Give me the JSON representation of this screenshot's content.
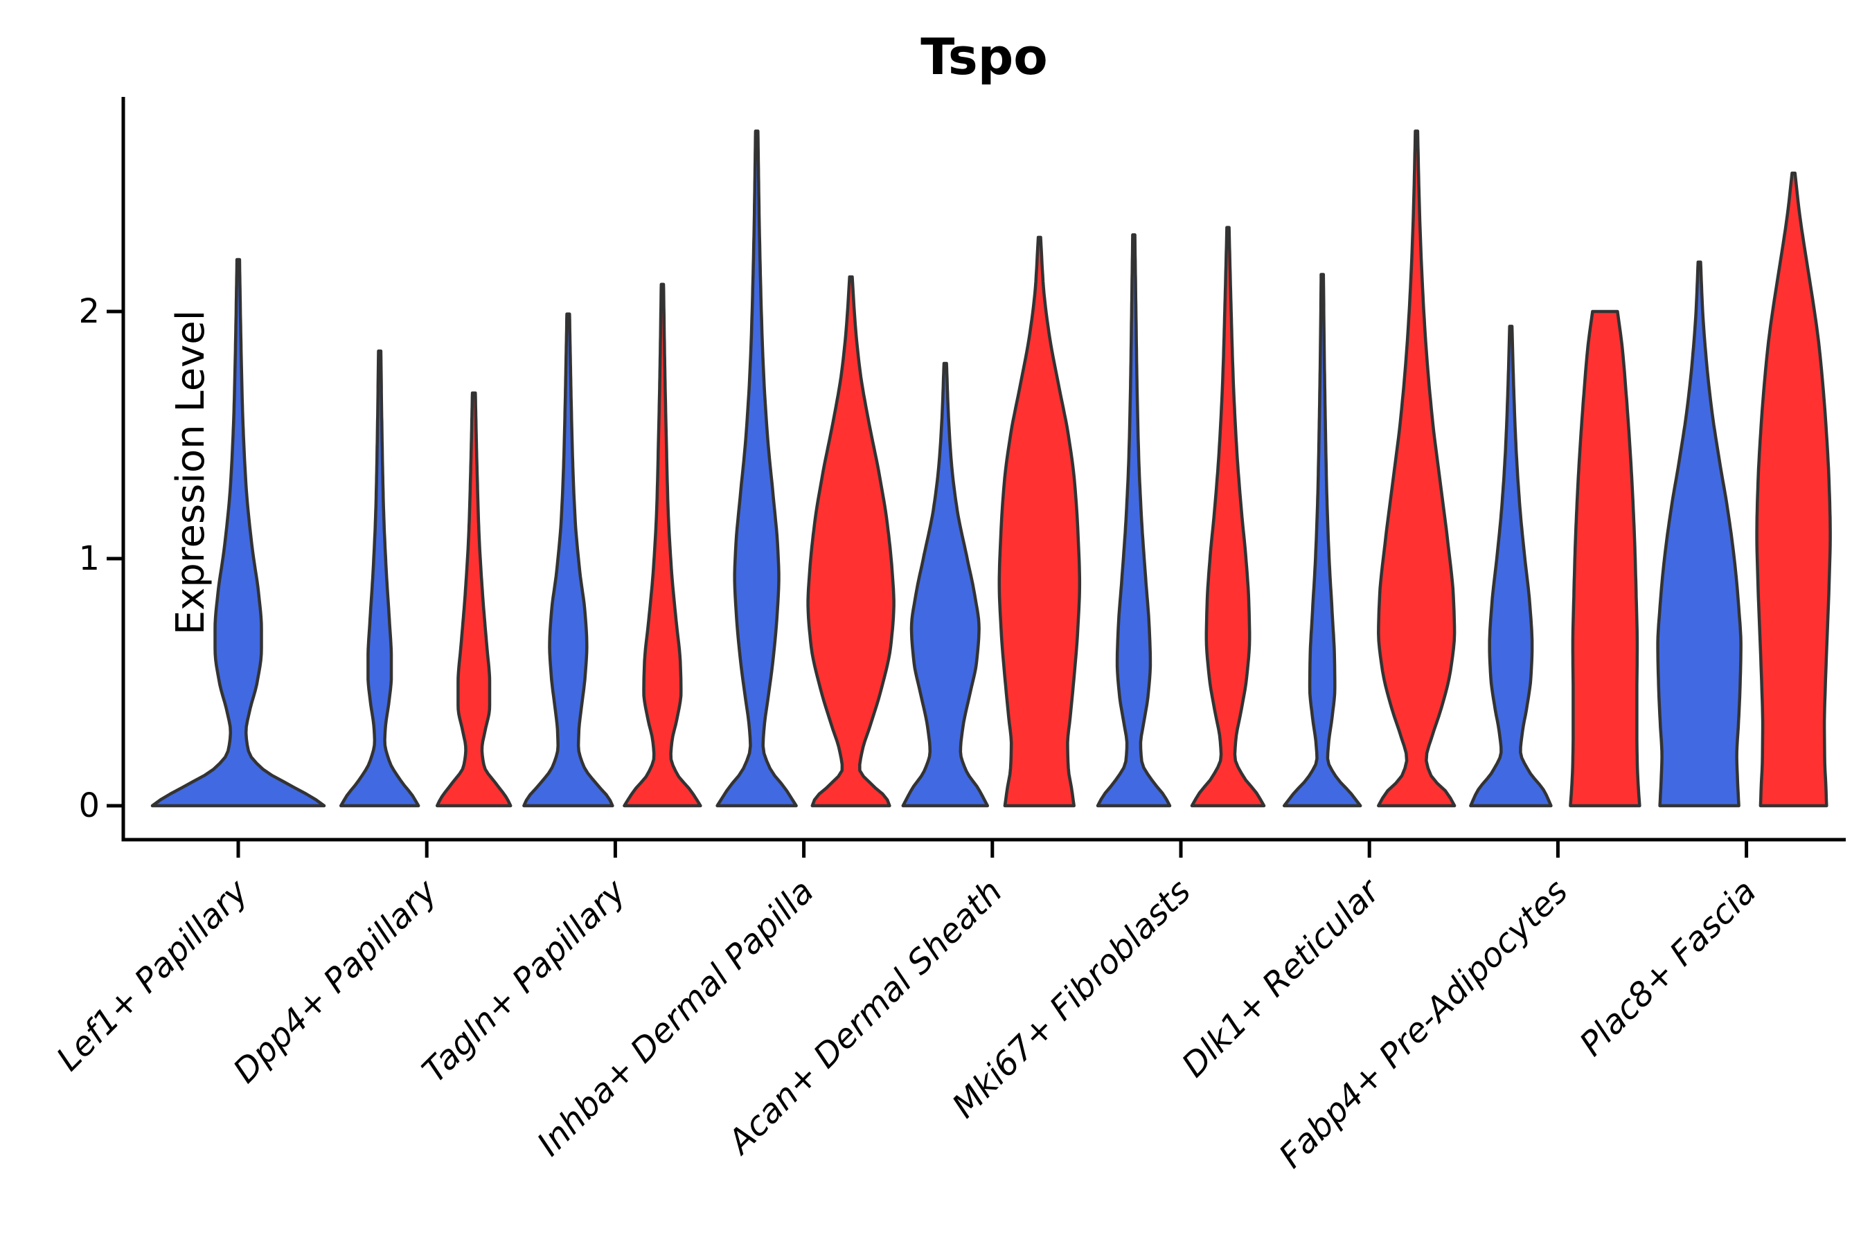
{
  "chart_data": {
    "type": "violin",
    "title": "Tspo",
    "ylabel": "Expression Level",
    "xlabel": "",
    "ytick_labels": [
      "0",
      "1",
      "2"
    ],
    "yticks": [
      0,
      1,
      2
    ],
    "ylim": [
      -0.13,
      2.87
    ],
    "grid": false,
    "legend": "none",
    "split_violins": true,
    "categories": [
      "Lef1+ Papillary",
      "Dpp4+ Papillary",
      "Tagln+ Papillary",
      "Inhba+ Dermal Papilla",
      "Acan+ Dermal Sheath",
      "Mki67+ Fibroblasts",
      "Dlk1+ Reticular",
      "Fabp4+ Pre-Adipocytes",
      "Plac8+ Fascia"
    ],
    "colors": {
      "blue": "#4169E1",
      "red": "#FF3131",
      "outline": "#333333",
      "axis": "#000000"
    },
    "violins": [
      {
        "category_index": 0,
        "group": "blue",
        "side": "single",
        "max": 2.21,
        "half_width": 124,
        "profile": [
          [
            0,
            1.0
          ],
          [
            0.03,
            0.88
          ],
          [
            0.08,
            0.62
          ],
          [
            0.15,
            0.28
          ],
          [
            0.22,
            0.12
          ],
          [
            0.3,
            0.09
          ],
          [
            0.38,
            0.13
          ],
          [
            0.5,
            0.22
          ],
          [
            0.63,
            0.27
          ],
          [
            0.72,
            0.27
          ],
          [
            0.85,
            0.24
          ],
          [
            1.05,
            0.16
          ],
          [
            1.3,
            0.09
          ],
          [
            1.6,
            0.05
          ],
          [
            1.9,
            0.03
          ],
          [
            2.21,
            0.015
          ]
        ]
      },
      {
        "category_index": 1,
        "group": "blue",
        "side": "left",
        "max": 1.84,
        "half_width": 56,
        "profile": [
          [
            0,
            1.0
          ],
          [
            0.04,
            0.85
          ],
          [
            0.1,
            0.55
          ],
          [
            0.18,
            0.25
          ],
          [
            0.26,
            0.13
          ],
          [
            0.32,
            0.15
          ],
          [
            0.42,
            0.24
          ],
          [
            0.52,
            0.3
          ],
          [
            0.6,
            0.3
          ],
          [
            0.75,
            0.25
          ],
          [
            0.95,
            0.17
          ],
          [
            1.2,
            0.1
          ],
          [
            1.5,
            0.06
          ],
          [
            1.84,
            0.03
          ]
        ]
      },
      {
        "category_index": 1,
        "group": "red",
        "side": "right",
        "max": 1.67,
        "half_width": 53,
        "profile": [
          [
            0,
            1.0
          ],
          [
            0.03,
            0.9
          ],
          [
            0.09,
            0.6
          ],
          [
            0.16,
            0.28
          ],
          [
            0.23,
            0.22
          ],
          [
            0.3,
            0.3
          ],
          [
            0.4,
            0.43
          ],
          [
            0.5,
            0.43
          ],
          [
            0.65,
            0.35
          ],
          [
            0.85,
            0.24
          ],
          [
            1.1,
            0.14
          ],
          [
            1.4,
            0.08
          ],
          [
            1.67,
            0.04
          ]
        ]
      },
      {
        "category_index": 2,
        "group": "blue",
        "side": "left",
        "max": 1.99,
        "half_width": 64,
        "profile": [
          [
            0,
            1.0
          ],
          [
            0.03,
            0.92
          ],
          [
            0.08,
            0.68
          ],
          [
            0.16,
            0.35
          ],
          [
            0.24,
            0.23
          ],
          [
            0.3,
            0.24
          ],
          [
            0.4,
            0.3
          ],
          [
            0.52,
            0.38
          ],
          [
            0.65,
            0.42
          ],
          [
            0.78,
            0.38
          ],
          [
            0.95,
            0.26
          ],
          [
            1.15,
            0.16
          ],
          [
            1.4,
            0.1
          ],
          [
            1.7,
            0.06
          ],
          [
            1.99,
            0.03
          ]
        ]
      },
      {
        "category_index": 2,
        "group": "red",
        "side": "right",
        "max": 2.11,
        "half_width": 55,
        "profile": [
          [
            0,
            1.0
          ],
          [
            0.06,
            0.75
          ],
          [
            0.13,
            0.38
          ],
          [
            0.2,
            0.22
          ],
          [
            0.26,
            0.25
          ],
          [
            0.35,
            0.38
          ],
          [
            0.46,
            0.49
          ],
          [
            0.58,
            0.47
          ],
          [
            0.75,
            0.36
          ],
          [
            0.95,
            0.24
          ],
          [
            1.2,
            0.15
          ],
          [
            1.5,
            0.1
          ],
          [
            1.8,
            0.06
          ],
          [
            2.11,
            0.03
          ]
        ]
      },
      {
        "category_index": 3,
        "group": "blue",
        "side": "left",
        "max": 2.73,
        "half_width": 57,
        "profile": [
          [
            0,
            1.0
          ],
          [
            0.07,
            0.72
          ],
          [
            0.15,
            0.34
          ],
          [
            0.24,
            0.16
          ],
          [
            0.32,
            0.19
          ],
          [
            0.45,
            0.3
          ],
          [
            0.6,
            0.42
          ],
          [
            0.78,
            0.52
          ],
          [
            0.92,
            0.56
          ],
          [
            1.05,
            0.53
          ],
          [
            1.25,
            0.42
          ],
          [
            1.5,
            0.27
          ],
          [
            1.8,
            0.16
          ],
          [
            2.1,
            0.1
          ],
          [
            2.4,
            0.06
          ],
          [
            2.73,
            0.03
          ]
        ]
      },
      {
        "category_index": 3,
        "group": "red",
        "side": "right",
        "max": 2.14,
        "half_width": 62,
        "profile": [
          [
            0,
            0.9
          ],
          [
            0.03,
            0.83
          ],
          [
            0.08,
            0.52
          ],
          [
            0.15,
            0.2
          ],
          [
            0.22,
            0.26
          ],
          [
            0.33,
            0.46
          ],
          [
            0.48,
            0.72
          ],
          [
            0.65,
            0.93
          ],
          [
            0.82,
            1.0
          ],
          [
            0.95,
            0.96
          ],
          [
            1.15,
            0.84
          ],
          [
            1.35,
            0.65
          ],
          [
            1.55,
            0.42
          ],
          [
            1.75,
            0.22
          ],
          [
            1.95,
            0.1
          ],
          [
            2.14,
            0.03
          ]
        ]
      },
      {
        "category_index": 4,
        "group": "blue",
        "side": "left",
        "max": 1.79,
        "half_width": 61,
        "profile": [
          [
            0,
            1.0
          ],
          [
            0.07,
            0.78
          ],
          [
            0.14,
            0.5
          ],
          [
            0.22,
            0.36
          ],
          [
            0.32,
            0.42
          ],
          [
            0.45,
            0.58
          ],
          [
            0.58,
            0.74
          ],
          [
            0.72,
            0.8
          ],
          [
            0.85,
            0.7
          ],
          [
            1.0,
            0.52
          ],
          [
            1.2,
            0.28
          ],
          [
            1.4,
            0.14
          ],
          [
            1.6,
            0.07
          ],
          [
            1.79,
            0.03
          ]
        ]
      },
      {
        "category_index": 4,
        "group": "red",
        "side": "right",
        "max": 2.3,
        "half_width": 58,
        "profile": [
          [
            0,
            0.86
          ],
          [
            0.07,
            0.8
          ],
          [
            0.15,
            0.72
          ],
          [
            0.25,
            0.7
          ],
          [
            0.35,
            0.76
          ],
          [
            0.5,
            0.85
          ],
          [
            0.7,
            0.95
          ],
          [
            0.9,
            1.0
          ],
          [
            1.1,
            0.96
          ],
          [
            1.3,
            0.88
          ],
          [
            1.5,
            0.72
          ],
          [
            1.7,
            0.48
          ],
          [
            1.9,
            0.25
          ],
          [
            2.1,
            0.1
          ],
          [
            2.3,
            0.03
          ]
        ]
      },
      {
        "category_index": 5,
        "group": "blue",
        "side": "left",
        "max": 2.31,
        "half_width": 52,
        "profile": [
          [
            0,
            1.0
          ],
          [
            0.04,
            0.85
          ],
          [
            0.1,
            0.52
          ],
          [
            0.18,
            0.22
          ],
          [
            0.25,
            0.19
          ],
          [
            0.33,
            0.27
          ],
          [
            0.45,
            0.4
          ],
          [
            0.58,
            0.46
          ],
          [
            0.72,
            0.43
          ],
          [
            0.92,
            0.33
          ],
          [
            1.15,
            0.22
          ],
          [
            1.4,
            0.14
          ],
          [
            1.7,
            0.09
          ],
          [
            2.0,
            0.06
          ],
          [
            2.31,
            0.03
          ]
        ]
      },
      {
        "category_index": 5,
        "group": "red",
        "side": "right",
        "max": 2.34,
        "half_width": 52,
        "profile": [
          [
            0,
            1.0
          ],
          [
            0.05,
            0.8
          ],
          [
            0.12,
            0.42
          ],
          [
            0.2,
            0.19
          ],
          [
            0.27,
            0.22
          ],
          [
            0.38,
            0.36
          ],
          [
            0.52,
            0.52
          ],
          [
            0.68,
            0.6
          ],
          [
            0.82,
            0.58
          ],
          [
            1.0,
            0.5
          ],
          [
            1.2,
            0.37
          ],
          [
            1.45,
            0.24
          ],
          [
            1.75,
            0.14
          ],
          [
            2.05,
            0.08
          ],
          [
            2.34,
            0.03
          ]
        ]
      },
      {
        "category_index": 6,
        "group": "blue",
        "side": "left",
        "max": 2.15,
        "half_width": 55,
        "profile": [
          [
            0,
            1.0
          ],
          [
            0.05,
            0.75
          ],
          [
            0.12,
            0.35
          ],
          [
            0.19,
            0.14
          ],
          [
            0.26,
            0.17
          ],
          [
            0.36,
            0.26
          ],
          [
            0.48,
            0.33
          ],
          [
            0.6,
            0.32
          ],
          [
            0.78,
            0.26
          ],
          [
            1.0,
            0.18
          ],
          [
            1.25,
            0.12
          ],
          [
            1.55,
            0.08
          ],
          [
            1.85,
            0.05
          ],
          [
            2.15,
            0.03
          ]
        ]
      },
      {
        "category_index": 6,
        "group": "red",
        "side": "right",
        "max": 2.73,
        "half_width": 56,
        "profile": [
          [
            0,
            0.98
          ],
          [
            0.05,
            0.8
          ],
          [
            0.12,
            0.38
          ],
          [
            0.19,
            0.25
          ],
          [
            0.28,
            0.4
          ],
          [
            0.4,
            0.65
          ],
          [
            0.55,
            0.88
          ],
          [
            0.7,
            0.98
          ],
          [
            0.85,
            0.95
          ],
          [
            1.05,
            0.82
          ],
          [
            1.3,
            0.62
          ],
          [
            1.55,
            0.42
          ],
          [
            1.85,
            0.25
          ],
          [
            2.15,
            0.14
          ],
          [
            2.45,
            0.07
          ],
          [
            2.73,
            0.03
          ]
        ]
      },
      {
        "category_index": 7,
        "group": "blue",
        "side": "left",
        "max": 1.94,
        "half_width": 58,
        "profile": [
          [
            0,
            1.0
          ],
          [
            0.06,
            0.83
          ],
          [
            0.14,
            0.45
          ],
          [
            0.22,
            0.24
          ],
          [
            0.3,
            0.29
          ],
          [
            0.4,
            0.4
          ],
          [
            0.52,
            0.5
          ],
          [
            0.65,
            0.53
          ],
          [
            0.82,
            0.47
          ],
          [
            1.0,
            0.35
          ],
          [
            1.2,
            0.23
          ],
          [
            1.45,
            0.13
          ],
          [
            1.7,
            0.07
          ],
          [
            1.94,
            0.03
          ]
        ]
      },
      {
        "category_index": 7,
        "group": "red",
        "side": "right",
        "max": 2.0,
        "half_width": 50,
        "flat_top": true,
        "profile": [
          [
            0,
            1.0
          ],
          [
            0.08,
            0.96
          ],
          [
            0.18,
            0.93
          ],
          [
            0.3,
            0.92
          ],
          [
            0.45,
            0.92
          ],
          [
            0.65,
            0.93
          ],
          [
            0.85,
            0.9
          ],
          [
            1.05,
            0.86
          ],
          [
            1.25,
            0.8
          ],
          [
            1.45,
            0.72
          ],
          [
            1.65,
            0.62
          ],
          [
            1.85,
            0.5
          ],
          [
            2.0,
            0.36
          ]
        ]
      },
      {
        "category_index": 8,
        "group": "blue",
        "side": "left",
        "max": 2.2,
        "half_width": 60,
        "profile": [
          [
            0,
            0.95
          ],
          [
            0.1,
            0.92
          ],
          [
            0.2,
            0.9
          ],
          [
            0.33,
            0.94
          ],
          [
            0.48,
            0.98
          ],
          [
            0.65,
            1.0
          ],
          [
            0.82,
            0.94
          ],
          [
            1.0,
            0.84
          ],
          [
            1.2,
            0.68
          ],
          [
            1.4,
            0.48
          ],
          [
            1.6,
            0.3
          ],
          [
            1.8,
            0.17
          ],
          [
            2.0,
            0.08
          ],
          [
            2.2,
            0.03
          ]
        ]
      },
      {
        "category_index": 8,
        "group": "red",
        "side": "right",
        "max": 2.56,
        "half_width": 53,
        "profile": [
          [
            0,
            0.9
          ],
          [
            0.08,
            0.88
          ],
          [
            0.18,
            0.85
          ],
          [
            0.33,
            0.84
          ],
          [
            0.5,
            0.87
          ],
          [
            0.7,
            0.92
          ],
          [
            0.9,
            0.97
          ],
          [
            1.1,
            1.0
          ],
          [
            1.3,
            0.97
          ],
          [
            1.5,
            0.9
          ],
          [
            1.7,
            0.8
          ],
          [
            1.88,
            0.68
          ],
          [
            2.05,
            0.52
          ],
          [
            2.22,
            0.34
          ],
          [
            2.4,
            0.16
          ],
          [
            2.56,
            0.04
          ]
        ]
      }
    ]
  }
}
